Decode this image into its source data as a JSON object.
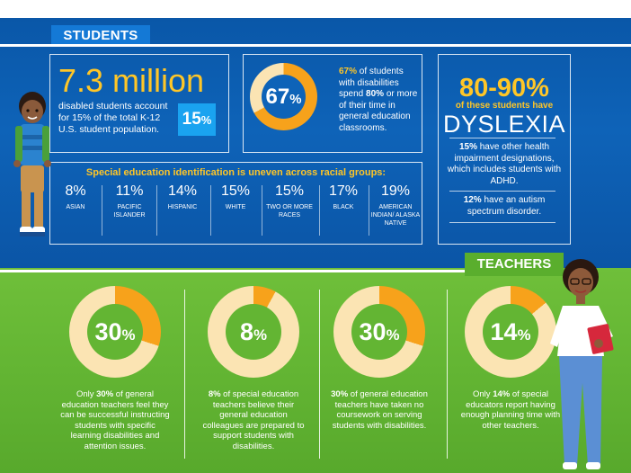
{
  "students": {
    "tag": "STUDENTS",
    "big_number": "7.3 million",
    "description": "disabled students account for 15% of the total K-12 U.S. student population.",
    "badge": "15",
    "badge_pct": "%",
    "donut_pct": 67,
    "donut_label": "67",
    "donut_unit": "%",
    "stat_67_lead": "67%",
    "stat_67_a": " of students with disabilities spend ",
    "stat_67_b": "80%",
    "stat_67_c": " or more of their time in general education classrooms."
  },
  "dyslexia": {
    "range": "80-90%",
    "sub": "of these students have",
    "word": "DYSLEXIA",
    "p1_lead": "15%",
    "p1": " have other health impairment designations, which includes students with ADHD.",
    "p2_lead": "12%",
    "p2": " have an autism spectrum disorder."
  },
  "race": {
    "title": "Special education identification is uneven across racial groups:",
    "groups": [
      {
        "value": "8%",
        "label": "ASIAN"
      },
      {
        "value": "11%",
        "label": "PACIFIC ISLANDER"
      },
      {
        "value": "14%",
        "label": "HISPANIC"
      },
      {
        "value": "15%",
        "label": "WHITE"
      },
      {
        "value": "15%",
        "label": "TWO OR MORE RACES"
      },
      {
        "value": "17%",
        "label": "BLACK"
      },
      {
        "value": "19%",
        "label": "AMERICAN INDIAN/ ALASKA NATIVE"
      }
    ]
  },
  "teachers": {
    "tag": "TEACHERS",
    "stats": [
      {
        "pct": 30,
        "label": "30",
        "unit": "%",
        "pre": "Only ",
        "bold": "30%",
        "post": " of general education teachers feel they can be successful instructing students with specific learning disabilities and attention issues."
      },
      {
        "pct": 8,
        "label": "8",
        "unit": "%",
        "pre": "",
        "bold": "8%",
        "post": " of special education teachers believe their general education colleagues are prepared to support students with disabilities."
      },
      {
        "pct": 30,
        "label": "30",
        "unit": "%",
        "pre": "",
        "bold": "30%",
        "post": " of general education teachers have taken no coursework on serving students with disabilities."
      },
      {
        "pct": 14,
        "label": "14",
        "unit": "%",
        "pre": "Only ",
        "bold": "14%",
        "post": " of special educators report having enough planning time with other teachers."
      }
    ]
  },
  "colors": {
    "blue": "#0e63b8",
    "green": "#63b533",
    "yellow": "#ffc627",
    "donut_light": "#fbe4b3",
    "donut_orange": "#f7a21b",
    "badge_blue": "#1aa3f0"
  },
  "icons": {
    "student": "boy-student-illustration",
    "teacher": "teacher-illustration"
  }
}
